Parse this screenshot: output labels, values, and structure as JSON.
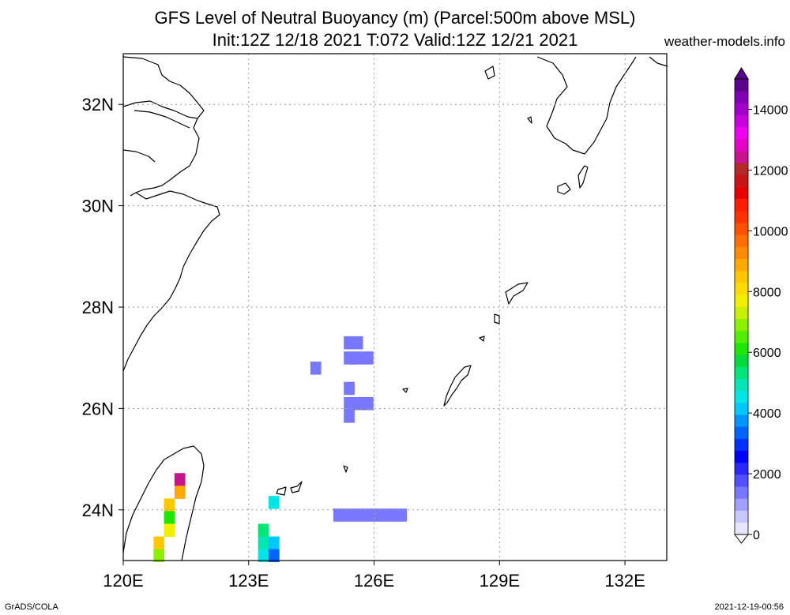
{
  "title": {
    "line1": "GFS Level of Neutral Buoyancy (m) (Parcel:500m above MSL)",
    "line2": "Init:12Z 12/18 2021 T:072 Valid:12Z 12/21 2021"
  },
  "site": "weather-models.info",
  "credit": "GrADS/COLA",
  "timestamp": "2021-12-19-00:56",
  "map": {
    "lon_range": [
      120,
      133
    ],
    "lat_range": [
      23,
      33
    ],
    "lon_ticks": [
      {
        "value": 120,
        "label": "120E"
      },
      {
        "value": 123,
        "label": "123E"
      },
      {
        "value": 126,
        "label": "126E"
      },
      {
        "value": 129,
        "label": "129E"
      },
      {
        "value": 132,
        "label": "132E"
      }
    ],
    "lat_ticks": [
      {
        "value": 24,
        "label": "24N"
      },
      {
        "value": 26,
        "label": "26N"
      },
      {
        "value": 28,
        "label": "28N"
      },
      {
        "value": 30,
        "label": "30N"
      },
      {
        "value": 32,
        "label": "32N"
      }
    ]
  },
  "colorbar": {
    "labels": [
      {
        "value": 0,
        "label": "0"
      },
      {
        "value": 2000,
        "label": "2000"
      },
      {
        "value": 4000,
        "label": "4000"
      },
      {
        "value": 6000,
        "label": "6000"
      },
      {
        "value": 8000,
        "label": "8000"
      },
      {
        "value": 10000,
        "label": "10000"
      },
      {
        "value": 12000,
        "label": "12000"
      },
      {
        "value": 14000,
        "label": "14000"
      }
    ],
    "colors": [
      "#e6e6ff",
      "#c8c8ff",
      "#a0a0ff",
      "#7878ff",
      "#5050ff",
      "#2828ff",
      "#0000ff",
      "#0032ff",
      "#0064ff",
      "#0096ff",
      "#00c8ff",
      "#00e6e6",
      "#00e6b4",
      "#00e678",
      "#00dc3c",
      "#1ee600",
      "#50f000",
      "#8cf000",
      "#c8f000",
      "#f0f000",
      "#ffdc00",
      "#ffc800",
      "#ffaa00",
      "#ff8c00",
      "#ff6e00",
      "#ff5000",
      "#ff3200",
      "#ff1e00",
      "#e60000",
      "#c81414",
      "#b42828",
      "#c8148c",
      "#e600c8",
      "#f000f0",
      "#c800dc",
      "#a000c8",
      "#8200b4",
      "#5a008c"
    ],
    "range": [
      0,
      15000
    ]
  },
  "cells": [
    {
      "lon": 125.4,
      "lat": 27.3,
      "value": 1500
    },
    {
      "lon": 125.6,
      "lat": 27.3,
      "value": 1500
    },
    {
      "lon": 125.4,
      "lat": 27.0,
      "value": 1500
    },
    {
      "lon": 125.6,
      "lat": 27.0,
      "value": 1500
    },
    {
      "lon": 125.85,
      "lat": 27.0,
      "value": 1500
    },
    {
      "lon": 124.6,
      "lat": 26.8,
      "value": 1500
    },
    {
      "lon": 125.4,
      "lat": 26.4,
      "value": 1500
    },
    {
      "lon": 125.4,
      "lat": 26.1,
      "value": 1500
    },
    {
      "lon": 125.6,
      "lat": 26.1,
      "value": 1500
    },
    {
      "lon": 125.85,
      "lat": 26.1,
      "value": 1500
    },
    {
      "lon": 125.4,
      "lat": 25.85,
      "value": 1500
    },
    {
      "lon": 125.15,
      "lat": 23.9,
      "value": 1500
    },
    {
      "lon": 125.4,
      "lat": 23.9,
      "value": 1500
    },
    {
      "lon": 125.65,
      "lat": 23.9,
      "value": 1500
    },
    {
      "lon": 125.9,
      "lat": 23.9,
      "value": 1500
    },
    {
      "lon": 126.15,
      "lat": 23.9,
      "value": 1500
    },
    {
      "lon": 126.4,
      "lat": 23.9,
      "value": 1500
    },
    {
      "lon": 126.65,
      "lat": 23.9,
      "value": 1500
    },
    {
      "lon": 121.35,
      "lat": 24.6,
      "value": 12500
    },
    {
      "lon": 121.35,
      "lat": 24.35,
      "value": 9000
    },
    {
      "lon": 121.1,
      "lat": 24.1,
      "value": 8500
    },
    {
      "lon": 121.1,
      "lat": 23.85,
      "value": 6000
    },
    {
      "lon": 121.1,
      "lat": 23.6,
      "value": 7500
    },
    {
      "lon": 120.85,
      "lat": 23.35,
      "value": 8500
    },
    {
      "lon": 120.85,
      "lat": 23.1,
      "value": 7000
    },
    {
      "lon": 123.6,
      "lat": 24.15,
      "value": 4500
    },
    {
      "lon": 123.35,
      "lat": 23.6,
      "value": 5500
    },
    {
      "lon": 123.35,
      "lat": 23.35,
      "value": 5000
    },
    {
      "lon": 123.6,
      "lat": 23.35,
      "value": 4000
    },
    {
      "lon": 123.35,
      "lat": 23.1,
      "value": 4500
    },
    {
      "lon": 123.6,
      "lat": 23.1,
      "value": 3500
    }
  ]
}
